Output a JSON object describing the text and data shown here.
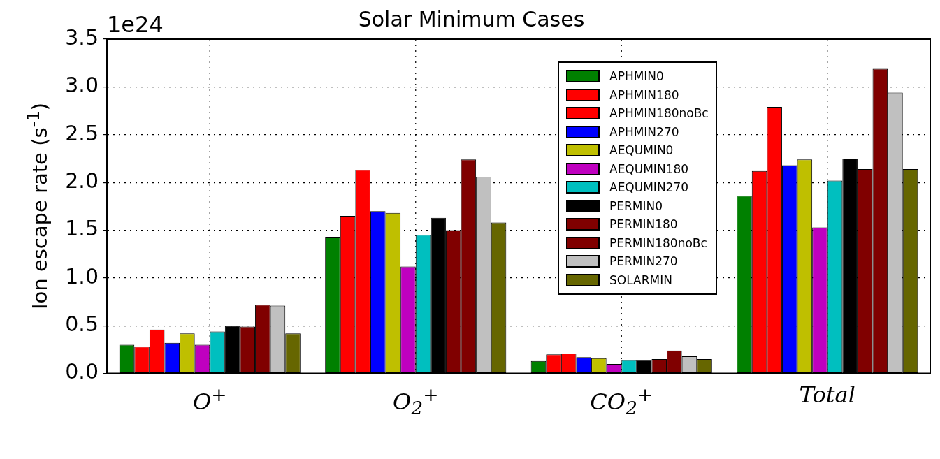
{
  "chart_data": {
    "type": "bar",
    "title": "Solar Minimum Cases",
    "ylabel": "Ion escape rate (s$^{-1}$)",
    "annotations": [
      "1e24"
    ],
    "categories": [
      "O$^{+}$",
      "O$_{2}$$^{+}$",
      "CO$_{2}$$^{+}$",
      "Total"
    ],
    "series": [
      {
        "name": "APHMIN0",
        "color": "#008000",
        "values": [
          0.3,
          1.43,
          0.13,
          1.86
        ]
      },
      {
        "name": "APHMIN180",
        "color": "#ff0000",
        "values": [
          0.28,
          1.65,
          0.2,
          2.12
        ]
      },
      {
        "name": "APHMIN180noBc",
        "color": "#ff0000",
        "values": [
          0.46,
          2.13,
          0.21,
          2.79
        ]
      },
      {
        "name": "APHMIN270",
        "color": "#0000ff",
        "values": [
          0.32,
          1.7,
          0.17,
          2.18
        ]
      },
      {
        "name": "AEQUMIN0",
        "color": "#bfbf00",
        "values": [
          0.42,
          1.68,
          0.16,
          2.24
        ]
      },
      {
        "name": "AEQUMIN180",
        "color": "#bf00bf",
        "values": [
          0.3,
          1.12,
          0.1,
          1.53
        ]
      },
      {
        "name": "AEQUMIN270",
        "color": "#00bfbf",
        "values": [
          0.44,
          1.45,
          0.14,
          2.02
        ]
      },
      {
        "name": "PERMIN0",
        "color": "#000000",
        "values": [
          0.5,
          1.63,
          0.14,
          2.25
        ]
      },
      {
        "name": "PERMIN180",
        "color": "#800000",
        "values": [
          0.49,
          1.5,
          0.15,
          2.14
        ]
      },
      {
        "name": "PERMIN180noBc",
        "color": "#800000",
        "values": [
          0.72,
          2.24,
          0.24,
          3.19
        ]
      },
      {
        "name": "PERMIN270",
        "color": "#c0c0c0",
        "values": [
          0.71,
          2.06,
          0.18,
          2.94
        ]
      },
      {
        "name": "SOLARMIN",
        "color": "#666600",
        "values": [
          0.42,
          1.58,
          0.15,
          2.14
        ]
      }
    ],
    "ylim": [
      0,
      3.5
    ],
    "yticks": [
      {
        "value": 0,
        "label": "0.0"
      },
      0.5,
      {
        "value": 1,
        "label": "1.0"
      },
      1.5,
      {
        "value": 2,
        "label": "2.0"
      },
      2.5,
      {
        "value": 3,
        "label": "3.0"
      },
      3.5
    ],
    "grid": true,
    "legend": "top right"
  }
}
